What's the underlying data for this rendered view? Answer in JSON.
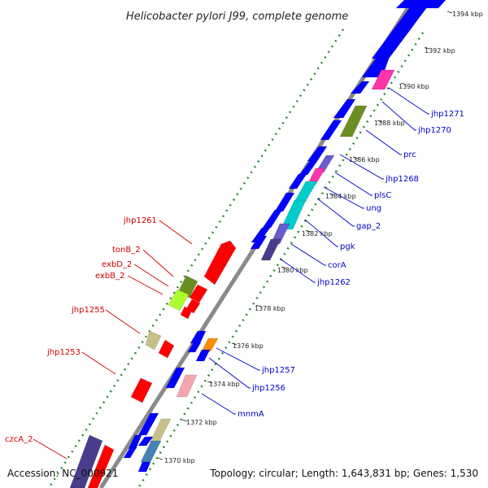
{
  "title": "Helicobacter pylori J99, complete genome",
  "footer": {
    "accession": "Accession: NC_000921",
    "topology": "Topology: circular; Length: 1,643,831 bp; Genes: 1,530"
  },
  "colors": {
    "forward_label": "#0000cc",
    "reverse_label": "#cc0000",
    "backbone": "#8a8a8a",
    "gc_dots": "#2e8b2e"
  },
  "ticks": [
    "1370 kbp",
    "1372 kbp",
    "1374 kbp",
    "1376 kbp",
    "1378 kbp",
    "1380 kbp",
    "1382 kbp",
    "1384 kbp",
    "1386 kbp",
    "1388 kbp",
    "1390 kbp",
    "1392 kbp",
    "1394 kbp"
  ],
  "forward_labels": [
    "jhp1271",
    "jhp1270",
    "prc",
    "jhp1268",
    "plsC",
    "ung",
    "gap_2",
    "pgk",
    "corA",
    "jhp1262",
    "jhp1257",
    "jhp1256",
    "mnmA"
  ],
  "reverse_labels": [
    "jhp1261",
    "tonB_2",
    "exbD_2",
    "exbB_2",
    "jhp1255",
    "jhp1253",
    "czcA_2"
  ]
}
